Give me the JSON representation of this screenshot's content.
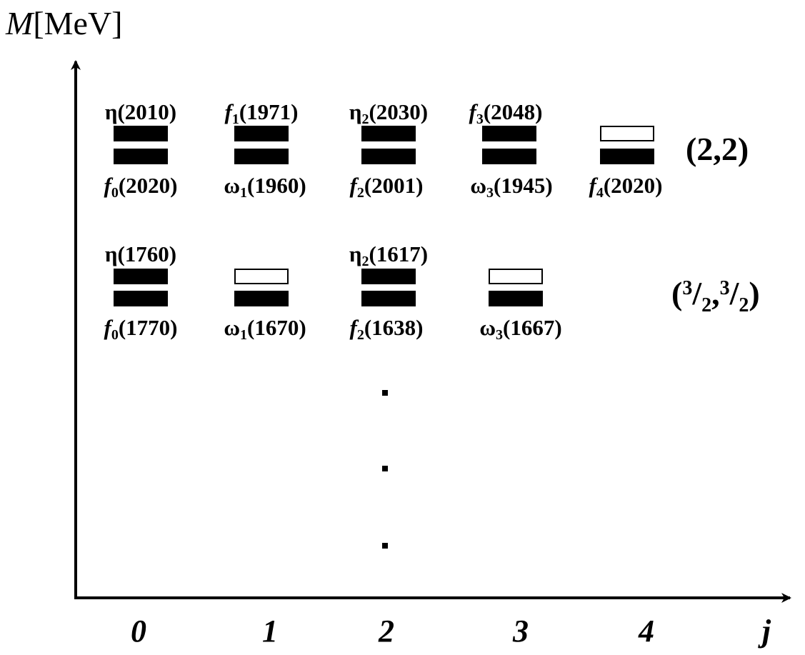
{
  "axis": {
    "y_symbol": "M",
    "y_unit": "[MeV]",
    "x_label": "j",
    "ticks": [
      "0",
      "1",
      "2",
      "3",
      "4"
    ]
  },
  "rows": [
    {
      "label": {
        "open": "(",
        "a": "2",
        "sep": ",",
        "b": "2",
        "close": ")"
      },
      "top_labels": [
        {
          "name": "η",
          "sub": "",
          "mass": "(2010)"
        },
        {
          "name": "f",
          "sub": "1",
          "mass": "(1971)"
        },
        {
          "name": "η",
          "sub": "2",
          "mass": "(2030)"
        },
        {
          "name": "f",
          "sub": "3",
          "mass": "(2048)"
        },
        null
      ],
      "bottom_labels": [
        {
          "name": "f",
          "sub": "0",
          "mass": "(2020)"
        },
        {
          "name": "ω",
          "sub": "1",
          "mass": "(1960)"
        },
        {
          "name": "f",
          "sub": "2",
          "mass": "(2001)"
        },
        {
          "name": "ω",
          "sub": "3",
          "mass": "(1945)"
        },
        {
          "name": "f",
          "sub": "4",
          "mass": "(2020)"
        }
      ],
      "top_filled": [
        true,
        true,
        true,
        true,
        false
      ],
      "bottom_filled": [
        true,
        true,
        true,
        true,
        true
      ]
    },
    {
      "label": {
        "open": "(",
        "a_num": "3",
        "a_slash": "/",
        "a_den": "2",
        "sep": ",",
        "b_num": "3",
        "b_slash": "/",
        "b_den": "2",
        "close": ")"
      },
      "top_labels": [
        {
          "name": "η",
          "sub": "",
          "mass": "(1760)"
        },
        null,
        {
          "name": "η",
          "sub": "2",
          "mass": "(1617)"
        },
        null
      ],
      "bottom_labels": [
        {
          "name": "f",
          "sub": "0",
          "mass": "(1770)"
        },
        {
          "name": "ω",
          "sub": "1",
          "mass": "(1670)"
        },
        {
          "name": "f",
          "sub": "2",
          "mass": "(1638)"
        },
        {
          "name": "ω",
          "sub": "3",
          "mass": "(1667)"
        }
      ],
      "top_filled": [
        true,
        false,
        true,
        false
      ],
      "bottom_filled": [
        true,
        true,
        true,
        true
      ]
    }
  ],
  "ellipsis_dots": 3
}
